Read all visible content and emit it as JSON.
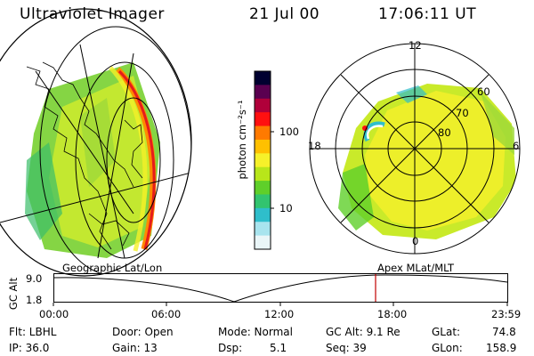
{
  "header": {
    "instrument": "Ultraviolet Imager",
    "date": "21 Jul 00",
    "time": "17:06:11 UT"
  },
  "colorbar": {
    "unit_label": "photon cm⁻²s⁻¹",
    "ticks": [
      "100",
      "10"
    ],
    "colors": [
      "#000030",
      "#5a0050",
      "#b0003a",
      "#ff1010",
      "#ff7a00",
      "#ffc000",
      "#f6f12a",
      "#b8e61a",
      "#5fcf2a",
      "#32c46f",
      "#2fbecb",
      "#a8e4ee",
      "#eaf6f8"
    ]
  },
  "polar_map": {
    "mlt_labels": [
      "12",
      "18",
      "6",
      "0"
    ],
    "lat_labels": [
      "60",
      "70",
      "80"
    ]
  },
  "plot": {
    "ylabel": "GC Alt",
    "yticks": [
      "9.0",
      "1.8"
    ],
    "left_title": "Geographic Lat/Lon",
    "right_title": "Apex MLat/MLT",
    "xticks": [
      "00:00",
      "06:00",
      "12:00",
      "18:00",
      "23:59"
    ],
    "marker_color": "#c00000"
  },
  "info": {
    "filter": "Flt: LBHL",
    "ip": "IP: 36.0",
    "door": "Door: Open",
    "gain": "Gain: 13",
    "mode": "Mode: Normal",
    "dsp_label": "Dsp:",
    "dsp_value": "5.1",
    "gcalt": "GC Alt: 9.1 Re",
    "seq": "Seq: 39",
    "glat_label": "GLat:",
    "glat_value": "74.8",
    "glon_label": "GLon:",
    "glon_value": "158.9"
  }
}
